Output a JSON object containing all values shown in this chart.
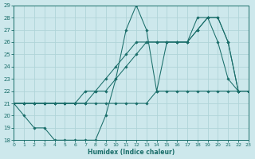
{
  "xlabel": "Humidex (Indice chaleur)",
  "bg_color": "#cde8ec",
  "line_color": "#1a6e6a",
  "grid_color": "#b0d4d8",
  "xlim": [
    0,
    23
  ],
  "ylim": [
    18,
    29
  ],
  "yticks": [
    18,
    19,
    20,
    21,
    22,
    23,
    24,
    25,
    26,
    27,
    28,
    29
  ],
  "xticks": [
    0,
    1,
    2,
    3,
    4,
    5,
    6,
    7,
    8,
    9,
    10,
    11,
    12,
    13,
    14,
    15,
    16,
    17,
    18,
    19,
    20,
    21,
    22,
    23
  ],
  "line1_x": [
    0,
    1,
    2,
    3,
    4,
    5,
    6,
    7,
    8,
    9,
    10,
    11,
    12,
    13,
    14,
    15,
    16,
    17,
    18,
    19,
    20,
    21,
    22,
    23
  ],
  "line1_y": [
    21,
    20,
    19,
    19,
    18,
    18,
    18,
    18,
    18,
    20,
    23,
    27,
    29,
    27,
    22,
    26,
    26,
    26,
    28,
    28,
    26,
    23,
    22,
    22
  ],
  "line2_x": [
    0,
    1,
    2,
    3,
    4,
    5,
    6,
    7,
    8,
    9,
    10,
    11,
    12,
    13,
    14,
    15,
    16,
    17,
    18,
    19,
    20,
    21,
    22,
    23
  ],
  "line2_y": [
    21,
    21,
    21,
    21,
    21,
    21,
    21,
    22,
    22,
    23,
    24,
    25,
    26,
    26,
    26,
    26,
    26,
    26,
    27,
    28,
    28,
    26,
    22,
    22
  ],
  "line3_x": [
    0,
    1,
    2,
    3,
    4,
    5,
    6,
    7,
    8,
    9,
    10,
    11,
    12,
    13,
    14,
    15,
    16,
    17,
    18,
    19,
    20,
    21,
    22,
    23
  ],
  "line3_y": [
    21,
    21,
    21,
    21,
    21,
    21,
    21,
    21,
    22,
    22,
    23,
    24,
    25,
    26,
    26,
    26,
    26,
    26,
    27,
    28,
    28,
    26,
    22,
    22
  ],
  "line4_x": [
    0,
    1,
    2,
    3,
    4,
    5,
    6,
    7,
    8,
    9,
    10,
    11,
    12,
    13,
    14,
    15,
    16,
    17,
    18,
    19,
    20,
    21,
    22,
    23
  ],
  "line4_y": [
    21,
    21,
    21,
    21,
    21,
    21,
    21,
    21,
    21,
    21,
    21,
    21,
    21,
    21,
    22,
    22,
    22,
    22,
    22,
    22,
    22,
    22,
    22,
    22
  ]
}
